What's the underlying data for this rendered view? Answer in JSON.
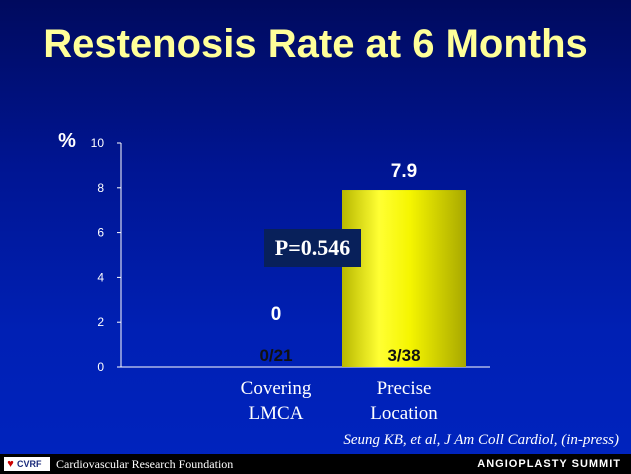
{
  "slide": {
    "title": "Restenosis Rate at 6 Months",
    "p_value": "P=0.546",
    "citation": "Seung KB, et al, J Am Coll Cardiol, (in-press)",
    "footer_left": "Cardiovascular Research Foundation",
    "logo_text": "CVRF",
    "footer_right": "ANGIOPLASTY SUMMIT"
  },
  "chart_data": {
    "type": "bar",
    "ylabel": "%",
    "ylim": [
      0,
      10
    ],
    "yticks": [
      0,
      2,
      4,
      6,
      8,
      10
    ],
    "categories": [
      [
        "Covering",
        "LMCA"
      ],
      [
        "Precise",
        "Location"
      ]
    ],
    "values": [
      0,
      7.9
    ],
    "value_labels": [
      "0",
      "7.9"
    ],
    "counts": [
      "0/21",
      "3/38"
    ],
    "bar_color": "#f0f000",
    "grid": false,
    "legend": "none"
  }
}
